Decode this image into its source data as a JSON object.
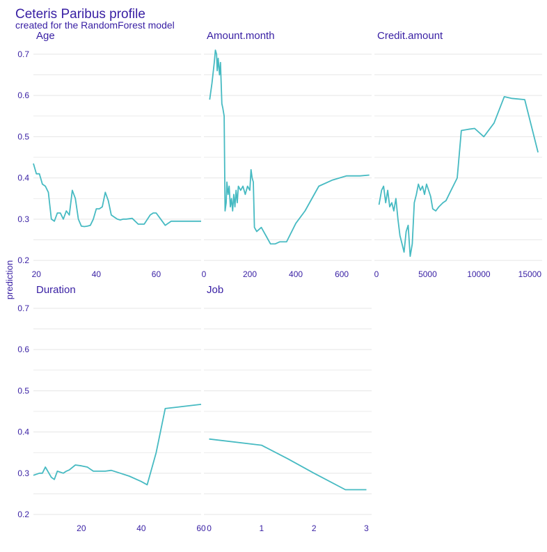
{
  "chart_data": {
    "type": "line",
    "title": "Ceteris Paribus profile",
    "subtitle": "created for the RandomForest model",
    "ylabel": "prediction",
    "ylim": [
      0.2,
      0.7
    ],
    "y_ticks": [
      0.2,
      0.3,
      0.4,
      0.5,
      0.6,
      0.7
    ],
    "y_tick_labels": [
      "0.2",
      "0.3",
      "0.4",
      "0.5",
      "0.6",
      "0.7"
    ],
    "grid": true,
    "colors": {
      "line": "#46bac2",
      "text": "#371ea3",
      "grid": "#e5e5e5"
    },
    "panels": [
      {
        "name": "Age",
        "xlim": [
          19,
          75
        ],
        "x_ticks": [
          20,
          40,
          60
        ],
        "x_tick_labels": [
          "20",
          "40",
          "60"
        ],
        "x": [
          19,
          20,
          21,
          22,
          23,
          24,
          25,
          26,
          27,
          28,
          29,
          30,
          31,
          32,
          33,
          34,
          35,
          36,
          37,
          38,
          39,
          40,
          41,
          42,
          43,
          44,
          45,
          46,
          47,
          48,
          49,
          50,
          52,
          54,
          56,
          58,
          59,
          60,
          61,
          62,
          63,
          64,
          65,
          67,
          70,
          75
        ],
        "y": [
          0.435,
          0.41,
          0.41,
          0.385,
          0.38,
          0.365,
          0.3,
          0.295,
          0.315,
          0.315,
          0.3,
          0.32,
          0.31,
          0.37,
          0.35,
          0.3,
          0.283,
          0.282,
          0.283,
          0.285,
          0.3,
          0.325,
          0.325,
          0.33,
          0.365,
          0.345,
          0.31,
          0.305,
          0.3,
          0.298,
          0.3,
          0.3,
          0.302,
          0.288,
          0.288,
          0.31,
          0.315,
          0.315,
          0.305,
          0.295,
          0.285,
          0.29,
          0.295,
          0.295,
          0.295,
          0.295
        ]
      },
      {
        "name": "Amount.month",
        "xlim": [
          0,
          730
        ],
        "x_ticks": [
          0,
          200,
          400,
          600
        ],
        "x_tick_labels": [
          "0",
          "200",
          "400",
          "600"
        ],
        "x": [
          25,
          35,
          45,
          50,
          55,
          58,
          62,
          68,
          72,
          78,
          82,
          88,
          92,
          97,
          100,
          105,
          110,
          115,
          120,
          125,
          130,
          135,
          140,
          145,
          150,
          160,
          170,
          180,
          190,
          200,
          205,
          210,
          215,
          220,
          230,
          250,
          270,
          290,
          310,
          330,
          360,
          400,
          440,
          500,
          560,
          620,
          680,
          720
        ],
        "y": [
          0.59,
          0.63,
          0.68,
          0.71,
          0.7,
          0.66,
          0.69,
          0.65,
          0.68,
          0.58,
          0.57,
          0.55,
          0.32,
          0.34,
          0.39,
          0.36,
          0.38,
          0.33,
          0.35,
          0.32,
          0.36,
          0.33,
          0.37,
          0.34,
          0.38,
          0.37,
          0.38,
          0.36,
          0.38,
          0.37,
          0.42,
          0.4,
          0.39,
          0.28,
          0.27,
          0.28,
          0.26,
          0.24,
          0.24,
          0.245,
          0.245,
          0.29,
          0.32,
          0.38,
          0.395,
          0.405,
          0.405,
          0.407
        ]
      },
      {
        "name": "Credit.amount",
        "xlim": [
          -200,
          16200
        ],
        "x_ticks": [
          0,
          5000,
          10000,
          15000
        ],
        "x_tick_labels": [
          "0",
          "5000",
          "10000",
          "15000"
        ],
        "x": [
          250,
          500,
          700,
          900,
          1100,
          1300,
          1500,
          1700,
          1900,
          2100,
          2300,
          2500,
          2700,
          2900,
          3100,
          3300,
          3500,
          3700,
          3900,
          4100,
          4300,
          4500,
          4700,
          4900,
          5100,
          5300,
          5500,
          5800,
          6100,
          6500,
          6800,
          7200,
          7600,
          7900,
          8300,
          9000,
          9600,
          10500,
          11500,
          12500,
          13200,
          14500,
          15800
        ],
        "y": [
          0.335,
          0.37,
          0.38,
          0.34,
          0.37,
          0.33,
          0.34,
          0.32,
          0.35,
          0.3,
          0.26,
          0.24,
          0.22,
          0.27,
          0.285,
          0.21,
          0.24,
          0.34,
          0.36,
          0.385,
          0.37,
          0.38,
          0.36,
          0.385,
          0.37,
          0.355,
          0.325,
          0.32,
          0.33,
          0.34,
          0.345,
          0.365,
          0.385,
          0.4,
          0.515,
          0.518,
          0.52,
          0.5,
          0.533,
          0.597,
          0.593,
          0.59,
          0.462
        ]
      },
      {
        "name": "Duration",
        "xlim": [
          4,
          60
        ],
        "x_ticks": [
          20,
          40,
          60
        ],
        "x_tick_labels": [
          "20",
          "40",
          "60"
        ],
        "x": [
          4,
          6,
          7,
          8,
          10,
          11,
          12,
          14,
          15,
          16,
          18,
          20,
          22,
          24,
          28,
          30,
          33,
          36,
          40,
          42,
          45,
          48,
          54,
          60
        ],
        "y": [
          0.295,
          0.3,
          0.3,
          0.315,
          0.29,
          0.285,
          0.305,
          0.3,
          0.305,
          0.308,
          0.32,
          0.318,
          0.315,
          0.305,
          0.305,
          0.307,
          0.3,
          0.293,
          0.28,
          0.272,
          0.35,
          0.457,
          0.462,
          0.467
        ]
      },
      {
        "name": "Job",
        "xlim": [
          -0.1,
          3.1
        ],
        "x_ticks": [
          0,
          1,
          2,
          3
        ],
        "x_tick_labels": [
          "0",
          "1",
          "2",
          "3"
        ],
        "x": [
          0,
          1,
          1.5,
          2,
          2.6,
          3
        ],
        "y": [
          0.383,
          0.368,
          0.335,
          0.3,
          0.26,
          0.26
        ]
      }
    ]
  }
}
